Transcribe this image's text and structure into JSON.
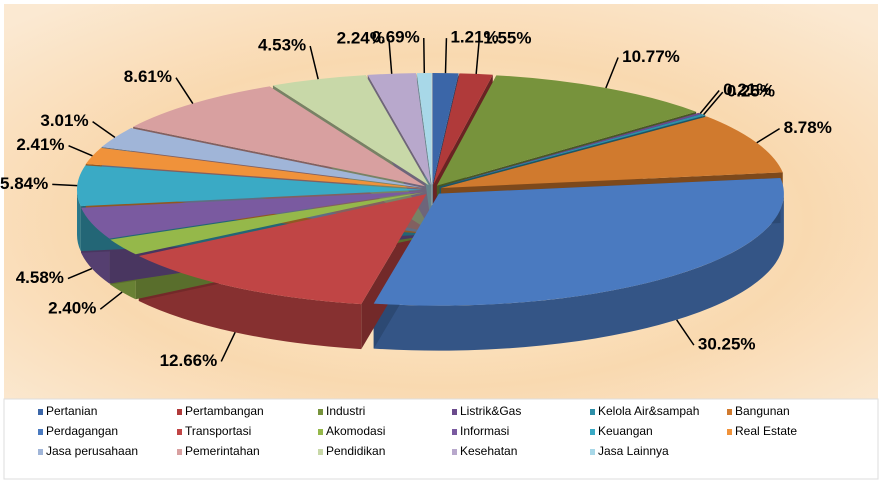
{
  "chart_data": {
    "type": "pie",
    "categories": [
      "Pertanian",
      "Pertambangan",
      "Industri",
      "Listrik&Gas",
      "Kelola Air&sampah",
      "Bangunan",
      "Perdagangan",
      "Transportasi",
      "Akomodasi",
      "Informasi",
      "Keuangan",
      "Real Estate",
      "Jasa perusahaan",
      "Pemerintahan",
      "Pendidikan",
      "Kesehatan",
      "Jasa Lainnya"
    ],
    "values": [
      1.21,
      1.55,
      10.77,
      0.21,
      0.25,
      8.78,
      30.25,
      12.66,
      2.4,
      4.58,
      5.84,
      2.41,
      3.01,
      8.61,
      4.53,
      2.24,
      0.69
    ],
    "value_labels": [
      "1.21%",
      "1.55%",
      "10.77%",
      "0.21%",
      "0.25%",
      "8.78%",
      "30.25%",
      "12.66%",
      "2.40%",
      "4.58%",
      "5.84%",
      "2.41%",
      "3.01%",
      "8.61%",
      "4.53%",
      "2.24%",
      "0.69%"
    ],
    "colors": [
      "#3b66a8",
      "#b03a3a",
      "#77933c",
      "#6a4a8c",
      "#2e8fa8",
      "#d07a2e",
      "#4a7ac0",
      "#c04545",
      "#95b84a",
      "#7a5aa0",
      "#3aaac5",
      "#f0923a",
      "#a0b5d8",
      "#d8a0a0",
      "#c8d8a8",
      "#b8a8cc",
      "#a8d8e8"
    ],
    "legend": "bottom"
  }
}
